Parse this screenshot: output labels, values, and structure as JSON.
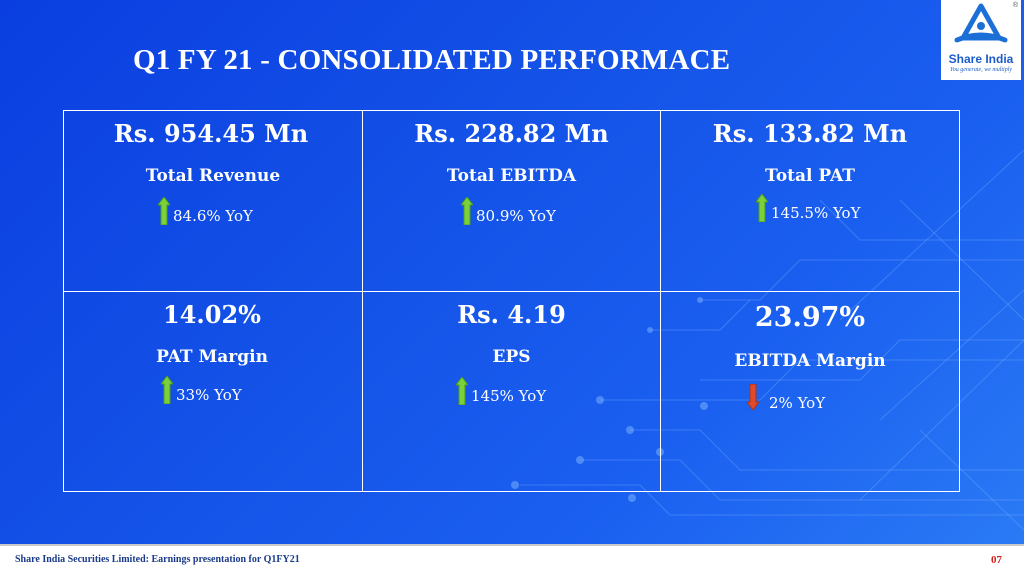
{
  "slide": {
    "title": "Q1 FY 21 - CONSOLIDATED PERFORMACE",
    "logo": {
      "name": "Share India",
      "tagline": "You generate, we multiply",
      "registered": "®"
    },
    "metrics": [
      {
        "value": "Rs. 954.45 Mn",
        "label": "Total Revenue",
        "yoy": "84.6% YoY",
        "direction": "up"
      },
      {
        "value": "Rs. 228.82 Mn",
        "label": "Total EBITDA",
        "yoy": "80.9% YoY",
        "direction": "up"
      },
      {
        "value": "Rs. 133.82 Mn",
        "label": "Total PAT",
        "yoy": "145.5% YoY",
        "direction": "up"
      },
      {
        "value": "14.02%",
        "label": "PAT Margin",
        "yoy": "33% YoY",
        "direction": "up"
      },
      {
        "value": "Rs. 4.19",
        "label": "EPS",
        "yoy": "145% YoY",
        "direction": "up"
      },
      {
        "value": "23.97%",
        "label": "EBITDA Margin",
        "yoy": "2% YoY",
        "direction": "down"
      }
    ],
    "colors": {
      "up_arrow": "#7bd13a",
      "down_arrow": "#e0492c",
      "background": "#1554e8"
    }
  },
  "footer": {
    "text": "Share India Securities Limited: Earnings presentation for Q1FY21",
    "page": "07"
  }
}
